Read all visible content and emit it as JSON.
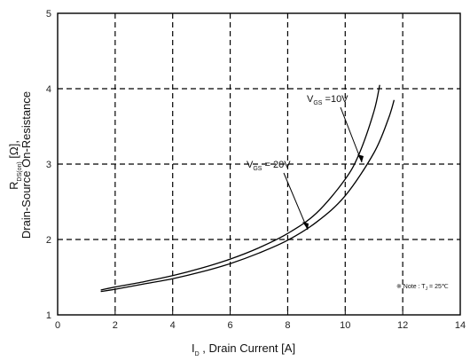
{
  "chart_data": {
    "type": "line",
    "xlim": [
      0,
      14
    ],
    "ylim": [
      1,
      5
    ],
    "x_ticks": [
      "0",
      "2",
      "4",
      "6",
      "8",
      "10",
      "12",
      "14"
    ],
    "y_ticks": [
      "1",
      "2",
      "3",
      "4",
      "5"
    ],
    "grid": true,
    "xlabel": {
      "main": "I",
      "sub": "D",
      "rest": " , Drain Current  [A]"
    },
    "ylabel": {
      "line1_main": "R",
      "line1_sub": "DS(on)",
      "line1_rest": " [Ω],",
      "line2": "Drain-Source On-Resistance"
    },
    "series": [
      {
        "name": "V_GS = 10V",
        "label_main": "V",
        "label_sub": "GS",
        "label_rest": " =10V",
        "x": [
          1.5,
          2,
          3,
          4,
          5,
          6,
          7,
          8,
          9,
          10,
          10.5,
          11,
          11.2
        ],
        "y": [
          1.33,
          1.37,
          1.44,
          1.52,
          1.62,
          1.74,
          1.89,
          2.08,
          2.35,
          2.8,
          3.15,
          3.7,
          4.05
        ]
      },
      {
        "name": "V_GS = 20V",
        "label_main": "V",
        "label_sub": "GS",
        "label_rest": " = 20V",
        "x": [
          1.5,
          2,
          3,
          4,
          5,
          6,
          7,
          8,
          9,
          10,
          11,
          11.5,
          11.7
        ],
        "y": [
          1.31,
          1.34,
          1.41,
          1.48,
          1.57,
          1.68,
          1.82,
          1.99,
          2.23,
          2.58,
          3.15,
          3.6,
          3.85
        ]
      }
    ],
    "note": {
      "prefix": "※ Note : T",
      "sub": "J",
      "suffix": " = 25℃"
    }
  }
}
